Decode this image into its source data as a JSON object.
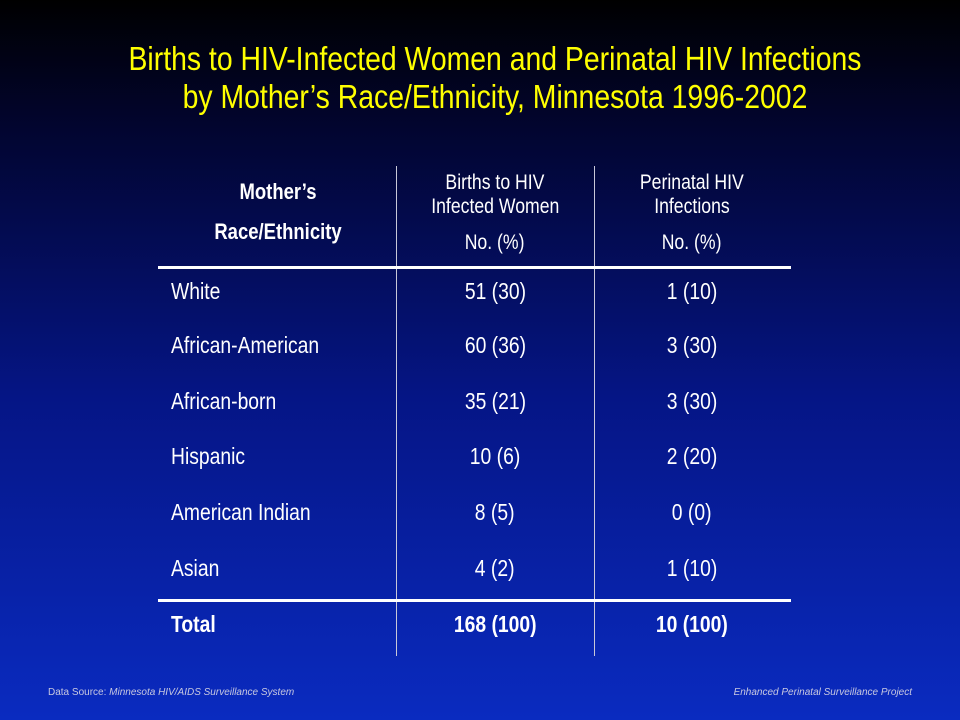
{
  "title": {
    "line1": "Births to HIV-Infected Women and Perinatal HIV Infections",
    "line2": "by Mother’s Race/Ethnicity, Minnesota 1996-2002"
  },
  "table": {
    "headers": {
      "col1": {
        "line1": "Mother’s",
        "line2": "Race/Ethnicity"
      },
      "col2": {
        "line1": "Births to HIV",
        "line2": "Infected Women",
        "sub": "No. (%)"
      },
      "col3": {
        "line1": "Perinatal HIV",
        "line2": "Infections",
        "sub": "No. (%)"
      }
    },
    "rows": [
      {
        "group": "White",
        "births": "51 (30)",
        "infections": "1 (10)"
      },
      {
        "group": "African-American",
        "births": "60 (36)",
        "infections": "3 (30)"
      },
      {
        "group": "African-born",
        "births": "35 (21)",
        "infections": "3 (30)"
      },
      {
        "group": "Hispanic",
        "births": "10 (6)",
        "infections": "2 (20)"
      },
      {
        "group": "American Indian",
        "births": "8 (5)",
        "infections": "0 (0)"
      },
      {
        "group": "Asian",
        "births": "4 (2)",
        "infections": "1 (10)"
      }
    ],
    "total": {
      "group": "Total",
      "births": "168 (100)",
      "infections": "10 (100)"
    }
  },
  "footer": {
    "source_label": "Data Source: ",
    "source_name": "Minnesota HIV/AIDS Surveillance System",
    "project": "Enhanced Perinatal Surveillance Project"
  },
  "colors": {
    "title": "#ffff00",
    "text": "#ffffff",
    "background_top": "#000000",
    "background_bottom": "#0a2bc0"
  }
}
